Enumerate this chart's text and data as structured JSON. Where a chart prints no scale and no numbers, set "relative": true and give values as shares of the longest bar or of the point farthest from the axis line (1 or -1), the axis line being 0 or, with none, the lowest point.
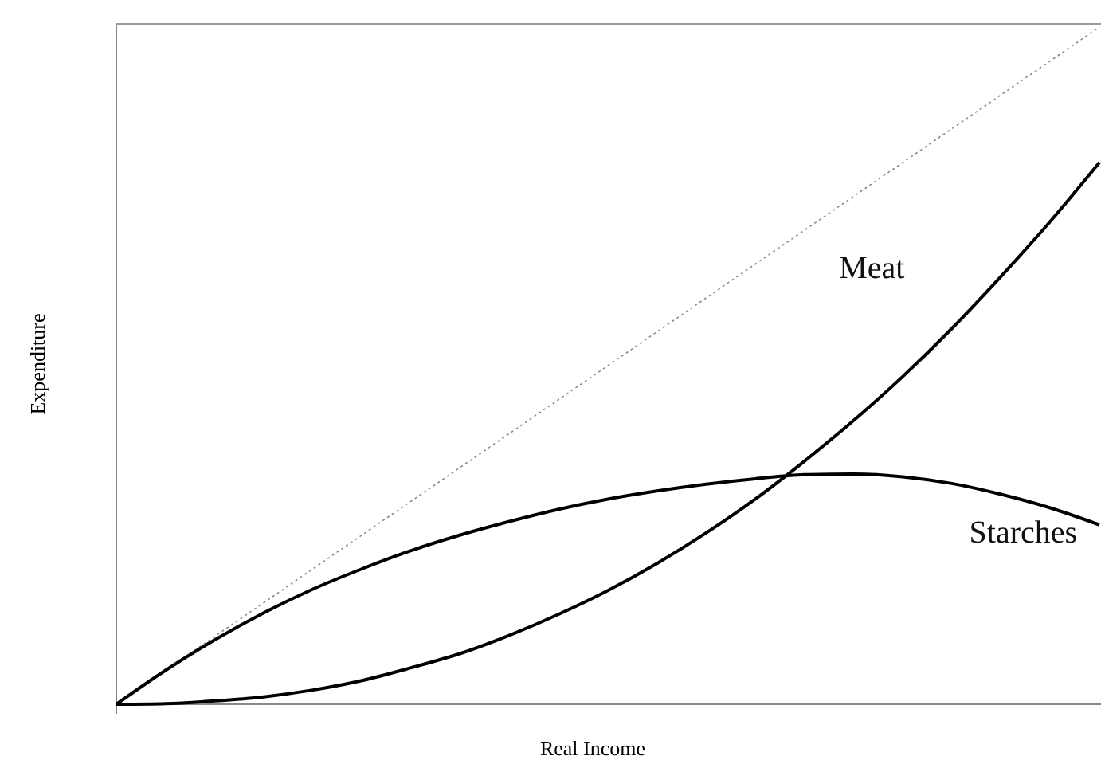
{
  "chart_data": {
    "type": "line",
    "relative": true,
    "xlabel": "Real Income",
    "ylabel": "Expenditure",
    "categories": [
      null,
      null,
      null,
      null,
      null,
      null,
      null,
      null,
      null,
      null,
      null,
      null,
      null,
      null,
      null,
      null,
      null,
      null,
      null,
      null,
      null
    ],
    "series": [
      {
        "color": "#8a8a8a",
        "line_style": "dotted",
        "values": [
          0,
          0.05,
          0.1,
          0.15,
          0.2,
          0.25,
          0.3,
          0.35,
          0.4,
          0.45,
          0.5,
          0.55,
          0.6,
          0.65,
          0.7,
          0.75,
          0.8,
          0.85,
          0.9,
          0.95,
          1
        ]
      },
      {
        "name": "Meat",
        "color": "#000000",
        "values": [
          0,
          0.001,
          0.005,
          0.011,
          0.021,
          0.035,
          0.054,
          0.075,
          0.102,
          0.133,
          0.168,
          0.208,
          0.253,
          0.303,
          0.359,
          0.419,
          0.484,
          0.555,
          0.632,
          0.713,
          0.8
        ]
      },
      {
        "name": "Starches",
        "color": "#000000",
        "values": [
          0,
          0.05,
          0.095,
          0.135,
          0.17,
          0.2,
          0.227,
          0.25,
          0.27,
          0.288,
          0.303,
          0.315,
          0.325,
          0.333,
          0.339,
          0.34,
          0.336,
          0.326,
          0.31,
          0.29,
          0.265
        ]
      }
    ],
    "legend": false,
    "marker": "none",
    "line_style": "solid"
  }
}
